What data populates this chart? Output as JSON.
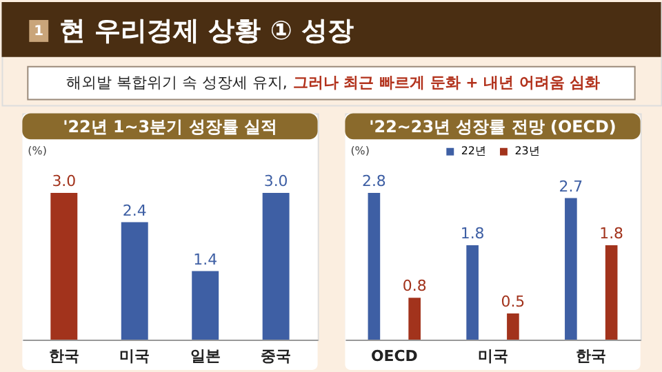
{
  "chart_data": [
    {
      "type": "bar",
      "title": "'22년 1~3분기 성장률 실적",
      "ylabel": "(%)",
      "annotations": [
        "1",
        "현 우리경제 상황 ① 성장",
        "해외발 복합위기 속 성장세 유지,",
        "그러나 최근 빠르게 둔화 + 내년 어려움 심화"
      ],
      "categories": [
        "한국",
        "미국",
        "일본",
        "중국"
      ],
      "values": [
        3.0,
        2.4,
        1.4,
        3.0
      ],
      "colors": [
        "#a2331c",
        "#3e5fa4",
        "#3e5fa4",
        "#3e5fa4"
      ],
      "value_labels": [
        "3.0",
        "2.4",
        "1.4",
        "3.0"
      ]
    },
    {
      "type": "bar",
      "title": "'22~23년 성장률 전망 (OECD)",
      "ylabel": "(%)",
      "categories": [
        "OECD",
        "미국",
        "한국"
      ],
      "series": [
        {
          "name": "22년",
          "color": "#3e5fa4",
          "values": [
            2.8,
            1.8,
            2.7
          ]
        },
        {
          "name": "23년",
          "color": "#a2331c",
          "values": [
            0.8,
            0.5,
            1.8
          ]
        }
      ],
      "data_labels": true,
      "legend": "top"
    }
  ]
}
